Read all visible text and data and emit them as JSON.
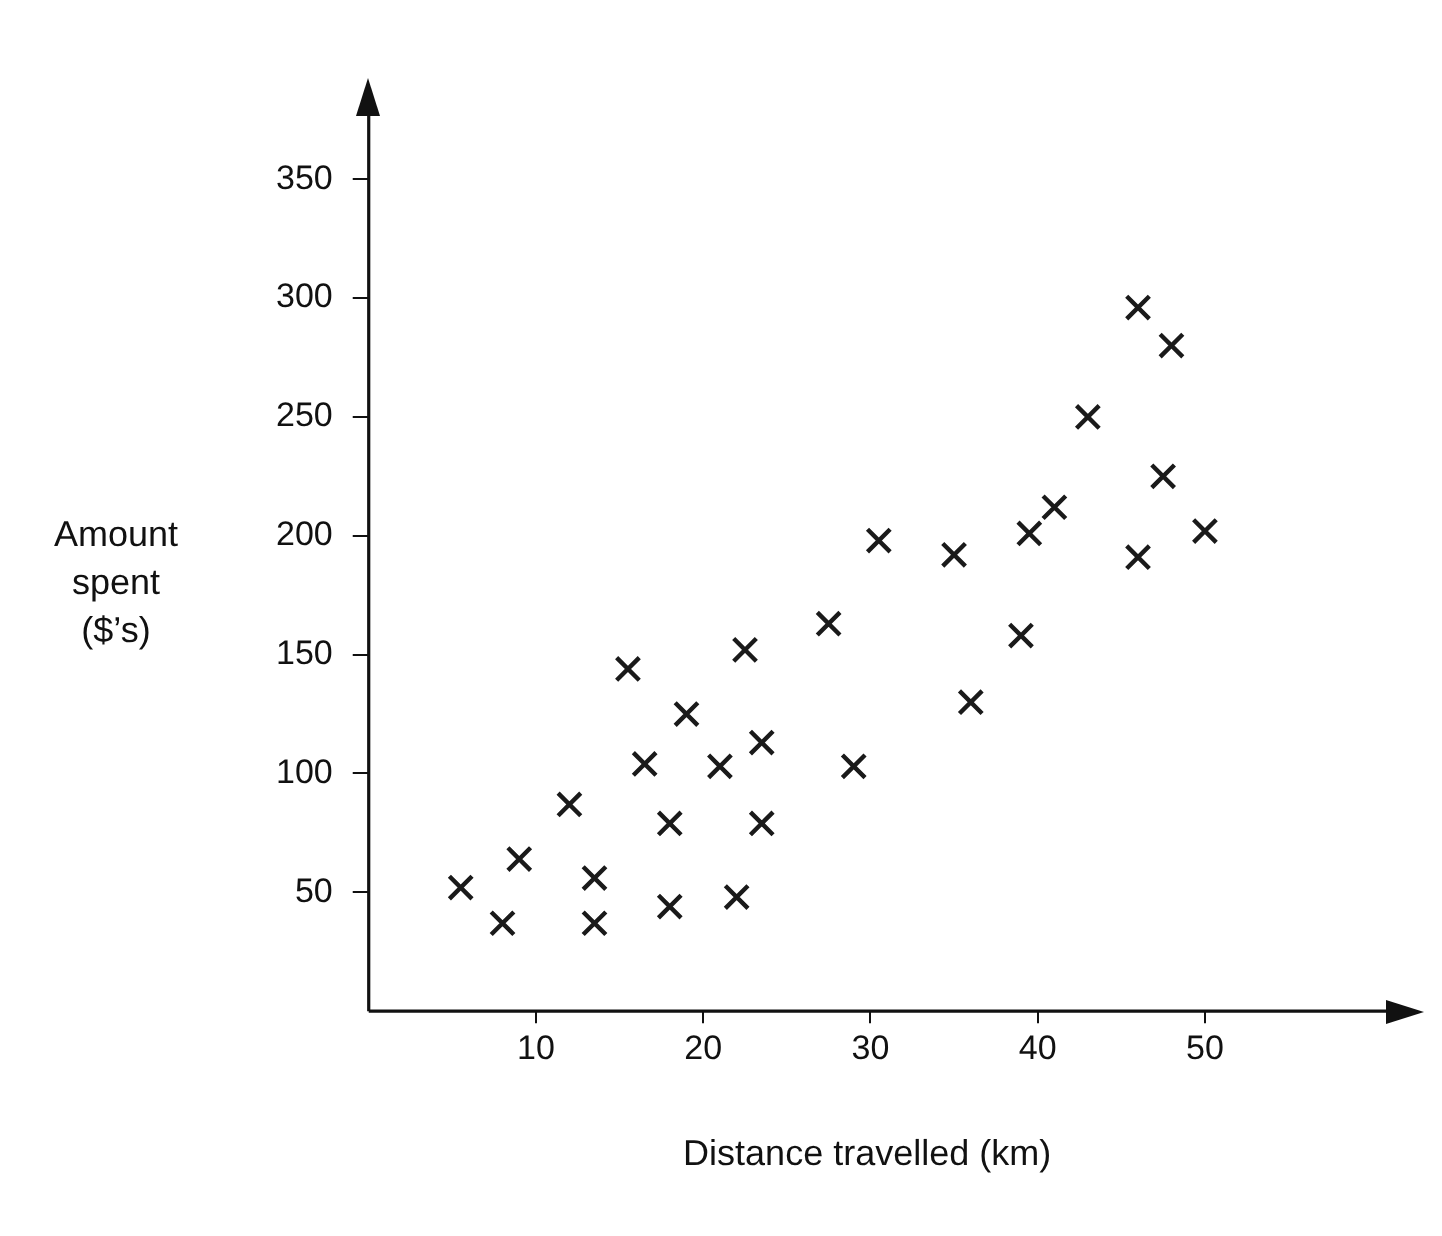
{
  "chart_data": {
    "type": "scatter",
    "xlabel": "Distance travelled (km)",
    "ylabel": "Amount spent ($’s)",
    "xlim": [
      0,
      62
    ],
    "ylim": [
      0,
      385
    ],
    "xticks": [
      10,
      20,
      30,
      40,
      50
    ],
    "yticks": [
      50,
      100,
      150,
      200,
      250,
      300,
      350
    ],
    "grid": false,
    "marker": "cross",
    "legend": false,
    "series": [
      {
        "color": "#1a1a1a",
        "x": [
          5.5,
          8,
          9,
          12,
          13.5,
          13.5,
          15.5,
          16.5,
          18,
          18,
          19,
          21,
          22.5,
          22,
          23.5,
          23.5,
          27.5,
          29,
          30.5,
          35,
          36,
          39,
          39.5,
          41,
          43,
          46,
          48,
          47.5,
          46,
          50
        ],
        "values": [
          52,
          37,
          64,
          87,
          56,
          37,
          144,
          104,
          79,
          44,
          125,
          103,
          152,
          48,
          113,
          79,
          163,
          103,
          198,
          192,
          130,
          158,
          201,
          212,
          250,
          296,
          280,
          225,
          191,
          202
        ]
      }
    ]
  }
}
